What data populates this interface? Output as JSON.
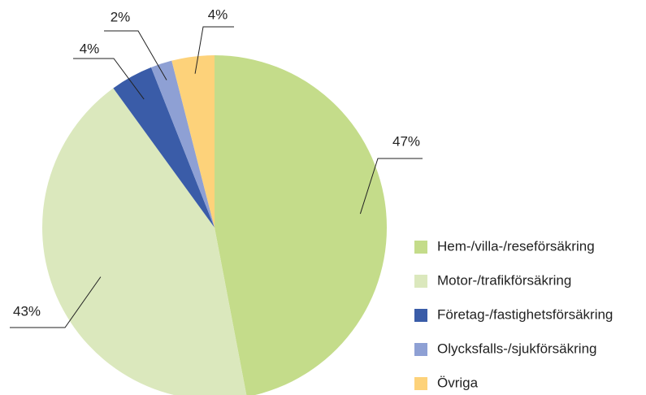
{
  "chart_data": {
    "type": "pie",
    "categories": [
      "Hem-/villa-/reseförsäkring",
      "Motor-/trafikförsäkring",
      "Företag-/fastighetsförsäkring",
      "Olycksfalls-/sjukförsäkring",
      "Övriga"
    ],
    "values": [
      47,
      43,
      4,
      2,
      4
    ],
    "value_labels": [
      "47%",
      "43%",
      "4%",
      "2%",
      "4%"
    ],
    "colors": [
      "#c4dc8a",
      "#dbe8bd",
      "#3a5ca8",
      "#8ea0d4",
      "#fdd27a"
    ],
    "legend": "right"
  }
}
